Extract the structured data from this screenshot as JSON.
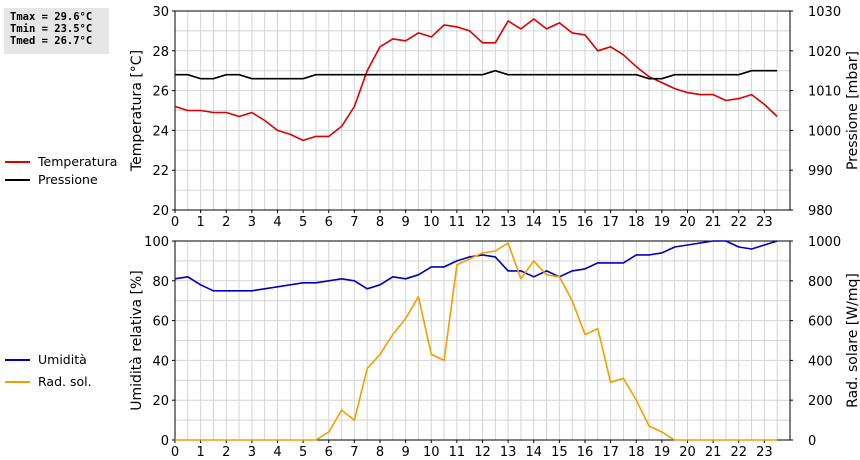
{
  "stats": {
    "tmax": "Tmax = 29.6°C",
    "tmin": "Tmin = 23.5°C",
    "tmed": "Tmed = 26.7°C"
  },
  "chart_data": [
    {
      "type": "line",
      "x_ticks": [
        "0",
        "1",
        "2",
        "3",
        "4",
        "5",
        "6",
        "7",
        "8",
        "9",
        "10",
        "11",
        "12",
        "13",
        "14",
        "15",
        "16",
        "17",
        "18",
        "19",
        "20",
        "21",
        "22",
        "23"
      ],
      "xlim": [
        0,
        24
      ],
      "grid": true,
      "legend_position": "left",
      "left_axis": {
        "label": "Temperatura [°C]",
        "ylim": [
          20,
          30
        ],
        "ticks": [
          "20",
          "22",
          "24",
          "26",
          "28",
          "30"
        ]
      },
      "right_axis": {
        "label": "Pressione [mbar]",
        "ylim": [
          980,
          1030
        ],
        "ticks": [
          "980",
          "990",
          "1000",
          "1010",
          "1020",
          "1030"
        ]
      },
      "series": [
        {
          "name": "Temperatura",
          "axis": "left",
          "color": "#dd0000",
          "x": [
            0,
            0.5,
            1,
            1.5,
            2,
            2.5,
            3,
            3.5,
            4,
            4.5,
            5,
            5.5,
            6,
            6.5,
            7,
            7.5,
            8,
            8.5,
            9,
            9.5,
            10,
            10.5,
            11,
            11.5,
            12,
            12.5,
            13,
            13.5,
            14,
            14.5,
            15,
            15.5,
            16,
            16.5,
            17,
            17.5,
            18,
            18.5,
            19,
            19.5,
            20,
            20.5,
            21,
            21.5,
            22,
            22.5,
            23,
            23.5
          ],
          "y": [
            25.2,
            25.0,
            25.0,
            24.9,
            24.9,
            24.7,
            24.9,
            24.5,
            24.0,
            23.8,
            23.5,
            23.7,
            23.7,
            24.2,
            25.2,
            27.0,
            28.2,
            28.6,
            28.5,
            28.9,
            28.7,
            29.3,
            29.2,
            29.0,
            28.4,
            28.4,
            29.5,
            29.1,
            29.6,
            29.1,
            29.4,
            28.9,
            28.8,
            28.0,
            28.2,
            27.8,
            27.2,
            26.7,
            26.4,
            26.1,
            25.9,
            25.8,
            25.8,
            25.5,
            25.6,
            25.8,
            25.3,
            24.7
          ]
        },
        {
          "name": "Pressione",
          "axis": "right",
          "color": "#000000",
          "x": [
            0,
            0.5,
            1,
            1.5,
            2,
            2.5,
            3,
            3.5,
            4,
            4.5,
            5,
            5.5,
            6,
            6.5,
            7,
            7.5,
            8,
            8.5,
            9,
            9.5,
            10,
            10.5,
            11,
            11.5,
            12,
            12.5,
            13,
            13.5,
            14,
            14.5,
            15,
            15.5,
            16,
            16.5,
            17,
            17.5,
            18,
            18.5,
            19,
            19.5,
            20,
            20.5,
            21,
            21.5,
            22,
            22.5,
            23,
            23.5
          ],
          "y": [
            1014,
            1014,
            1013,
            1013,
            1014,
            1014,
            1013,
            1013,
            1013,
            1013,
            1013,
            1014,
            1014,
            1014,
            1014,
            1014,
            1014,
            1014,
            1014,
            1014,
            1014,
            1014,
            1014,
            1014,
            1014,
            1015,
            1014,
            1014,
            1014,
            1014,
            1014,
            1014,
            1014,
            1014,
            1014,
            1014,
            1014,
            1013,
            1013,
            1014,
            1014,
            1014,
            1014,
            1014,
            1014,
            1015,
            1015,
            1015
          ]
        }
      ]
    },
    {
      "type": "line",
      "x_ticks": [
        "0",
        "1",
        "2",
        "3",
        "4",
        "5",
        "6",
        "7",
        "8",
        "9",
        "10",
        "11",
        "12",
        "13",
        "14",
        "15",
        "16",
        "17",
        "18",
        "19",
        "20",
        "21",
        "22",
        "23"
      ],
      "xlim": [
        0,
        24
      ],
      "grid": true,
      "legend_position": "left",
      "left_axis": {
        "label": "Umidità relativa [%]",
        "ylim": [
          0,
          100
        ],
        "ticks": [
          "0",
          "20",
          "40",
          "60",
          "80",
          "100"
        ]
      },
      "right_axis": {
        "label": "Rad. solare [W/mq]",
        "ylim": [
          0,
          1000
        ],
        "ticks": [
          "0",
          "200",
          "400",
          "600",
          "800",
          "1000"
        ]
      },
      "series": [
        {
          "name": "Umidità",
          "axis": "left",
          "color": "#0000bb",
          "x": [
            0,
            0.5,
            1,
            1.5,
            2,
            2.5,
            3,
            3.5,
            4,
            4.5,
            5,
            5.5,
            6,
            6.5,
            7,
            7.5,
            8,
            8.5,
            9,
            9.5,
            10,
            10.5,
            11,
            11.5,
            12,
            12.5,
            13,
            13.5,
            14,
            14.5,
            15,
            15.5,
            16,
            16.5,
            17,
            17.5,
            18,
            18.5,
            19,
            19.5,
            20,
            20.5,
            21,
            21.5,
            22,
            22.5,
            23,
            23.5
          ],
          "y": [
            81,
            82,
            78,
            75,
            75,
            75,
            75,
            76,
            77,
            78,
            79,
            79,
            80,
            81,
            80,
            76,
            78,
            82,
            81,
            83,
            87,
            87,
            90,
            92,
            93,
            92,
            85,
            85,
            82,
            85,
            82,
            85,
            86,
            89,
            89,
            89,
            93,
            93,
            94,
            97,
            98,
            99,
            100,
            100,
            97,
            96,
            98,
            100
          ]
        },
        {
          "name": "Rad. sol.",
          "axis": "right",
          "color": "#f0a000",
          "x": [
            0,
            0.5,
            1,
            1.5,
            2,
            2.5,
            3,
            3.5,
            4,
            4.5,
            5,
            5.5,
            6,
            6.5,
            7,
            7.5,
            8,
            8.5,
            9,
            9.5,
            10,
            10.5,
            11,
            11.5,
            12,
            12.5,
            13,
            13.5,
            14,
            14.5,
            15,
            15.5,
            16,
            16.5,
            17,
            17.5,
            18,
            18.5,
            19,
            19.5,
            20,
            20.5,
            21,
            21.5,
            22,
            22.5,
            23,
            23.5
          ],
          "y": [
            0,
            0,
            0,
            0,
            0,
            0,
            0,
            0,
            0,
            0,
            0,
            0,
            40,
            150,
            100,
            360,
            430,
            530,
            610,
            720,
            430,
            400,
            880,
            910,
            940,
            950,
            990,
            810,
            900,
            830,
            820,
            700,
            530,
            560,
            290,
            310,
            200,
            70,
            40,
            0,
            0,
            0,
            0,
            0,
            0,
            0,
            0,
            0
          ]
        }
      ]
    }
  ]
}
